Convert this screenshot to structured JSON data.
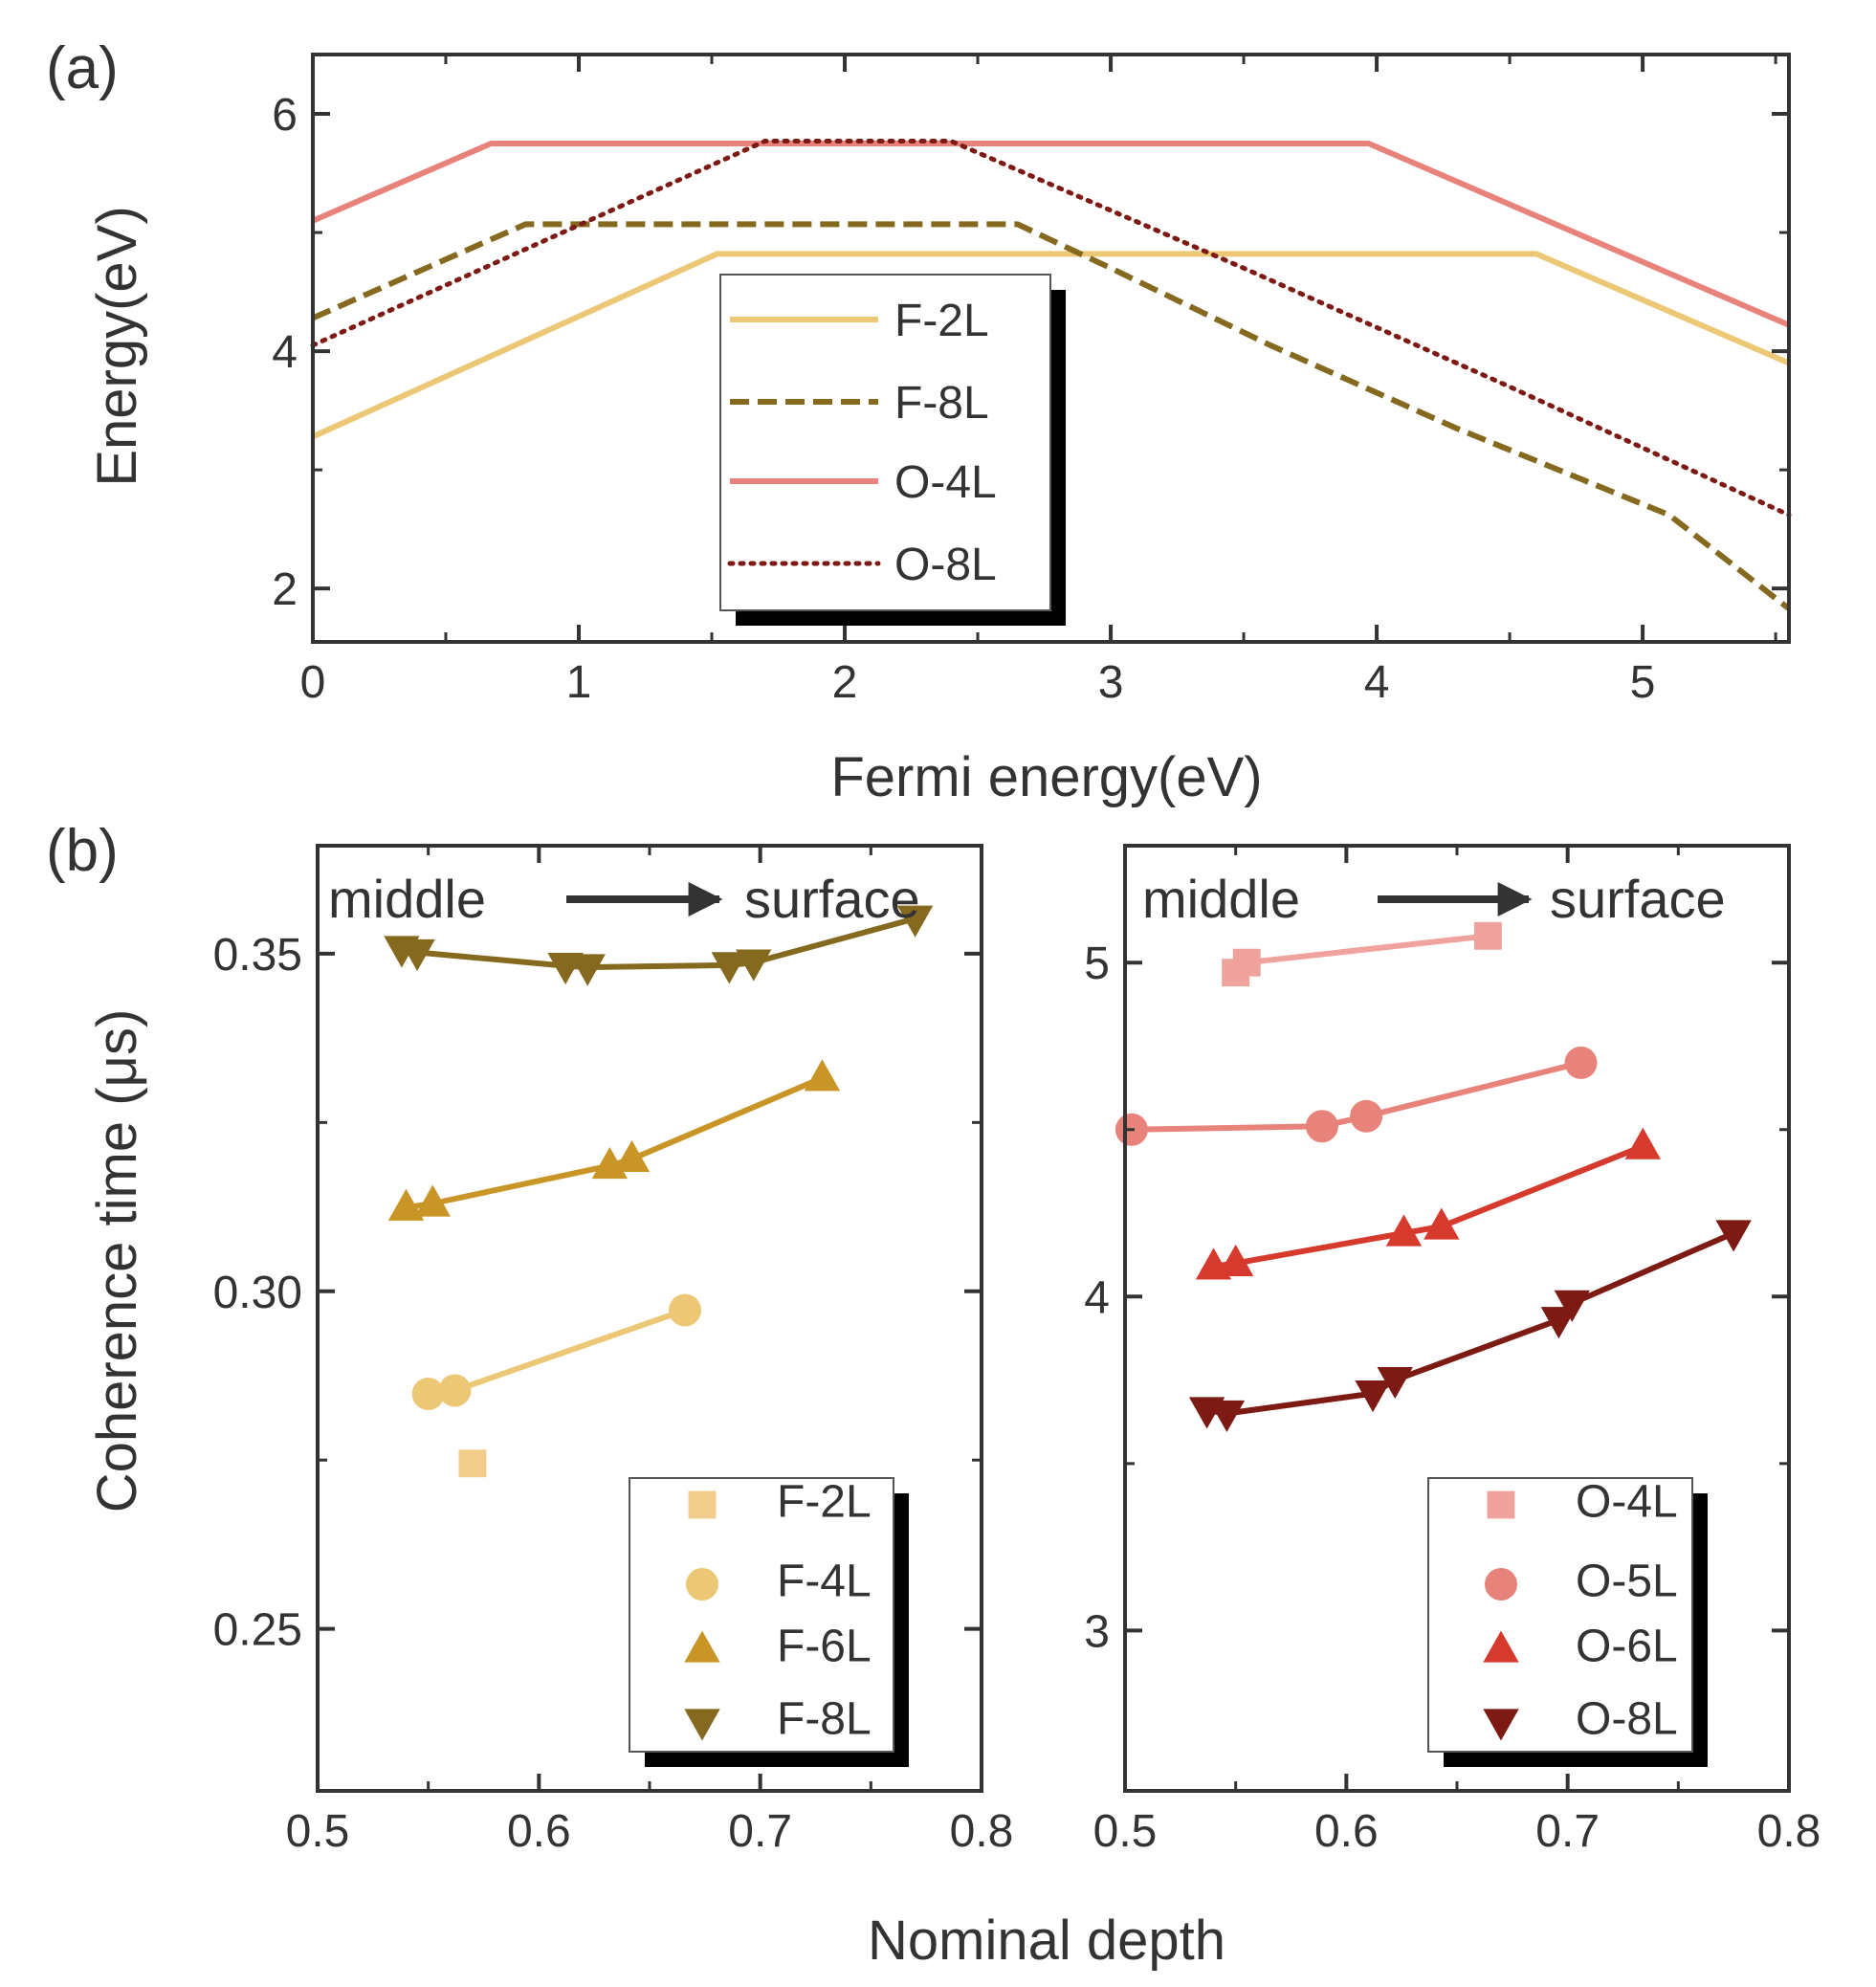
{
  "chart_data": [
    {
      "panel_label": "(a)",
      "type": "line",
      "xlabel": "Fermi energy(eV)",
      "ylabel": "Energy(eV)",
      "xlim": [
        0,
        5.55
      ],
      "ylim": [
        1.55,
        6.5
      ],
      "xticks": [
        0,
        1,
        2,
        3,
        4,
        5
      ],
      "xtick_labels": [
        "0",
        "1",
        "2",
        "3",
        "4",
        "5"
      ],
      "yticks": [
        2,
        4,
        6
      ],
      "ytick_labels": [
        "2",
        "4",
        "6"
      ],
      "minor_xticks": [
        0.5,
        1.5,
        2.5,
        3.5,
        4.5,
        5.5
      ],
      "minor_yticks": [
        3,
        5
      ],
      "legend_position": "center",
      "series": [
        {
          "name": "F-2L",
          "color": "#ECC776",
          "style": "solid",
          "x": [
            0,
            1.52,
            4.6,
            5.55
          ],
          "y": [
            3.28,
            4.82,
            4.82,
            3.9
          ]
        },
        {
          "name": "F-8L",
          "color": "#84691E",
          "style": "dashed",
          "x": [
            0,
            0.8,
            2.65,
            3.0,
            3.6,
            4.3,
            5.1,
            5.55
          ],
          "y": [
            4.28,
            5.07,
            5.07,
            4.7,
            4.05,
            3.35,
            2.62,
            1.83
          ]
        },
        {
          "name": "O-4L",
          "color": "#E8837B",
          "style": "solid",
          "x": [
            0,
            0.67,
            3.97,
            5.55
          ],
          "y": [
            5.1,
            5.75,
            5.75,
            4.22
          ]
        },
        {
          "name": "O-8L",
          "color": "#7E1A14",
          "style": "dotted",
          "x": [
            0,
            1.7,
            2.4,
            3.5,
            4.5,
            5.55
          ],
          "y": [
            4.05,
            5.77,
            5.77,
            4.7,
            3.7,
            2.62
          ]
        }
      ]
    },
    {
      "panel_label": "(b)",
      "type": "line",
      "xlabel": "Nominal depth",
      "ylabel": "Coherence time (μs)",
      "xlim": [
        0.5,
        0.8
      ],
      "ylim": [
        0.226,
        0.366
      ],
      "xticks": [
        0.5,
        0.6,
        0.7,
        0.8
      ],
      "xtick_labels": [
        "0.5",
        "0.6",
        "0.7",
        "0.8"
      ],
      "yticks": [
        0.25,
        0.3,
        0.35
      ],
      "ytick_labels": [
        "0.25",
        "0.30",
        "0.35"
      ],
      "minor_xticks": [
        0.55,
        0.65,
        0.75
      ],
      "minor_yticks": [
        0.275,
        0.325
      ],
      "annotation": {
        "left": "middle",
        "right": "surface"
      },
      "legend_position": "bottom-right",
      "series": [
        {
          "name": "F-2L",
          "color": "#F1CC8A",
          "marker": "square",
          "x": [
            0.57
          ],
          "y": [
            0.2745
          ]
        },
        {
          "name": "F-4L",
          "color": "#ECC776",
          "marker": "circle",
          "x": [
            0.55,
            0.562,
            0.666
          ],
          "y": [
            0.2848,
            0.2853,
            0.2972
          ]
        },
        {
          "name": "F-6L",
          "color": "#C99526",
          "marker": "triangle-up",
          "x": [
            0.54,
            0.552,
            0.632,
            0.642,
            0.728
          ],
          "y": [
            0.3124,
            0.313,
            0.3186,
            0.3196,
            0.3316
          ]
        },
        {
          "name": "F-8L",
          "color": "#84691E",
          "marker": "triangle-down",
          "x": [
            0.538,
            0.545,
            0.612,
            0.622,
            0.686,
            0.697,
            0.77
          ],
          "y": [
            0.3507,
            0.3502,
            0.3482,
            0.348,
            0.3483,
            0.3487,
            0.3552
          ]
        }
      ]
    },
    {
      "panel_label": "",
      "type": "line",
      "xlabel": "Nominal depth",
      "ylabel": "Coherence time (μs)",
      "xlim": [
        0.5,
        0.8
      ],
      "ylim": [
        2.52,
        5.35
      ],
      "xticks": [
        0.5,
        0.6,
        0.7,
        0.8
      ],
      "xtick_labels": [
        "0.5",
        "0.6",
        "0.7",
        "0.8"
      ],
      "yticks": [
        3,
        4,
        5
      ],
      "ytick_labels": [
        "3",
        "4",
        "5"
      ],
      "minor_xticks": [
        0.55,
        0.65,
        0.75
      ],
      "minor_yticks": [
        3.5,
        4.5
      ],
      "annotation": {
        "left": "middle",
        "right": "surface"
      },
      "legend_position": "bottom-right",
      "series": [
        {
          "name": "O-4L",
          "color": "#F0A39C",
          "marker": "square",
          "x": [
            0.55,
            0.555,
            0.664
          ],
          "y": [
            4.97,
            5.0,
            5.08
          ]
        },
        {
          "name": "O-5L",
          "color": "#E8837B",
          "marker": "circle",
          "x": [
            0.503,
            0.589,
            0.609,
            0.706
          ],
          "y": [
            4.5,
            4.51,
            4.54,
            4.7
          ]
        },
        {
          "name": "O-6L",
          "color": "#D63A2C",
          "marker": "triangle-up",
          "x": [
            0.54,
            0.55,
            0.626,
            0.643,
            0.734
          ],
          "y": [
            4.09,
            4.1,
            4.19,
            4.21,
            4.45
          ]
        },
        {
          "name": "O-8L",
          "color": "#7E1A14",
          "marker": "triangle-down",
          "x": [
            0.537,
            0.546,
            0.612,
            0.622,
            0.696,
            0.702,
            0.775
          ],
          "y": [
            3.66,
            3.65,
            3.71,
            3.75,
            3.93,
            3.98,
            4.19
          ]
        }
      ]
    }
  ]
}
